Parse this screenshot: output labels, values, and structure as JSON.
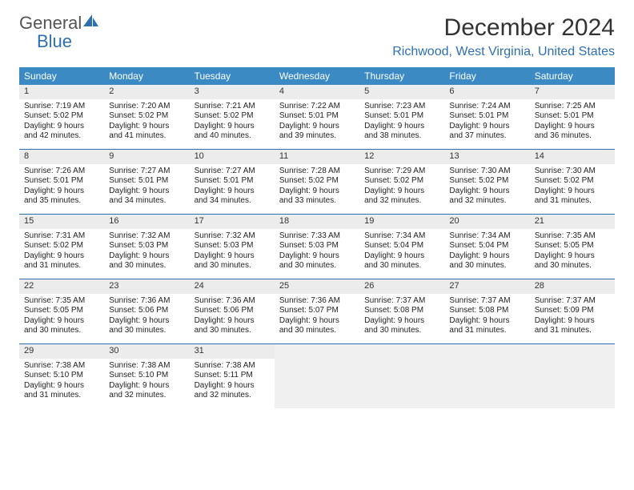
{
  "logo": {
    "text1": "General",
    "text2": "Blue"
  },
  "title": "December 2024",
  "location": "Richwood, West Virginia, United States",
  "colors": {
    "header_bg": "#3b8ac4",
    "header_fg": "#ffffff",
    "accent": "#2d6fb0",
    "daynum_bg": "#ececec",
    "empty_bg": "#f0f0f0"
  },
  "day_names": [
    "Sunday",
    "Monday",
    "Tuesday",
    "Wednesday",
    "Thursday",
    "Friday",
    "Saturday"
  ],
  "weeks": [
    [
      {
        "n": "1",
        "sr": "7:19 AM",
        "ss": "5:02 PM",
        "dl": "Daylight: 9 hours and 42 minutes."
      },
      {
        "n": "2",
        "sr": "7:20 AM",
        "ss": "5:02 PM",
        "dl": "Daylight: 9 hours and 41 minutes."
      },
      {
        "n": "3",
        "sr": "7:21 AM",
        "ss": "5:02 PM",
        "dl": "Daylight: 9 hours and 40 minutes."
      },
      {
        "n": "4",
        "sr": "7:22 AM",
        "ss": "5:01 PM",
        "dl": "Daylight: 9 hours and 39 minutes."
      },
      {
        "n": "5",
        "sr": "7:23 AM",
        "ss": "5:01 PM",
        "dl": "Daylight: 9 hours and 38 minutes."
      },
      {
        "n": "6",
        "sr": "7:24 AM",
        "ss": "5:01 PM",
        "dl": "Daylight: 9 hours and 37 minutes."
      },
      {
        "n": "7",
        "sr": "7:25 AM",
        "ss": "5:01 PM",
        "dl": "Daylight: 9 hours and 36 minutes."
      }
    ],
    [
      {
        "n": "8",
        "sr": "7:26 AM",
        "ss": "5:01 PM",
        "dl": "Daylight: 9 hours and 35 minutes."
      },
      {
        "n": "9",
        "sr": "7:27 AM",
        "ss": "5:01 PM",
        "dl": "Daylight: 9 hours and 34 minutes."
      },
      {
        "n": "10",
        "sr": "7:27 AM",
        "ss": "5:01 PM",
        "dl": "Daylight: 9 hours and 34 minutes."
      },
      {
        "n": "11",
        "sr": "7:28 AM",
        "ss": "5:02 PM",
        "dl": "Daylight: 9 hours and 33 minutes."
      },
      {
        "n": "12",
        "sr": "7:29 AM",
        "ss": "5:02 PM",
        "dl": "Daylight: 9 hours and 32 minutes."
      },
      {
        "n": "13",
        "sr": "7:30 AM",
        "ss": "5:02 PM",
        "dl": "Daylight: 9 hours and 32 minutes."
      },
      {
        "n": "14",
        "sr": "7:30 AM",
        "ss": "5:02 PM",
        "dl": "Daylight: 9 hours and 31 minutes."
      }
    ],
    [
      {
        "n": "15",
        "sr": "7:31 AM",
        "ss": "5:02 PM",
        "dl": "Daylight: 9 hours and 31 minutes."
      },
      {
        "n": "16",
        "sr": "7:32 AM",
        "ss": "5:03 PM",
        "dl": "Daylight: 9 hours and 30 minutes."
      },
      {
        "n": "17",
        "sr": "7:32 AM",
        "ss": "5:03 PM",
        "dl": "Daylight: 9 hours and 30 minutes."
      },
      {
        "n": "18",
        "sr": "7:33 AM",
        "ss": "5:03 PM",
        "dl": "Daylight: 9 hours and 30 minutes."
      },
      {
        "n": "19",
        "sr": "7:34 AM",
        "ss": "5:04 PM",
        "dl": "Daylight: 9 hours and 30 minutes."
      },
      {
        "n": "20",
        "sr": "7:34 AM",
        "ss": "5:04 PM",
        "dl": "Daylight: 9 hours and 30 minutes."
      },
      {
        "n": "21",
        "sr": "7:35 AM",
        "ss": "5:05 PM",
        "dl": "Daylight: 9 hours and 30 minutes."
      }
    ],
    [
      {
        "n": "22",
        "sr": "7:35 AM",
        "ss": "5:05 PM",
        "dl": "Daylight: 9 hours and 30 minutes."
      },
      {
        "n": "23",
        "sr": "7:36 AM",
        "ss": "5:06 PM",
        "dl": "Daylight: 9 hours and 30 minutes."
      },
      {
        "n": "24",
        "sr": "7:36 AM",
        "ss": "5:06 PM",
        "dl": "Daylight: 9 hours and 30 minutes."
      },
      {
        "n": "25",
        "sr": "7:36 AM",
        "ss": "5:07 PM",
        "dl": "Daylight: 9 hours and 30 minutes."
      },
      {
        "n": "26",
        "sr": "7:37 AM",
        "ss": "5:08 PM",
        "dl": "Daylight: 9 hours and 30 minutes."
      },
      {
        "n": "27",
        "sr": "7:37 AM",
        "ss": "5:08 PM",
        "dl": "Daylight: 9 hours and 31 minutes."
      },
      {
        "n": "28",
        "sr": "7:37 AM",
        "ss": "5:09 PM",
        "dl": "Daylight: 9 hours and 31 minutes."
      }
    ],
    [
      {
        "n": "29",
        "sr": "7:38 AM",
        "ss": "5:10 PM",
        "dl": "Daylight: 9 hours and 31 minutes."
      },
      {
        "n": "30",
        "sr": "7:38 AM",
        "ss": "5:10 PM",
        "dl": "Daylight: 9 hours and 32 minutes."
      },
      {
        "n": "31",
        "sr": "7:38 AM",
        "ss": "5:11 PM",
        "dl": "Daylight: 9 hours and 32 minutes."
      },
      null,
      null,
      null,
      null
    ]
  ],
  "labels": {
    "sunrise": "Sunrise: ",
    "sunset": "Sunset: "
  }
}
